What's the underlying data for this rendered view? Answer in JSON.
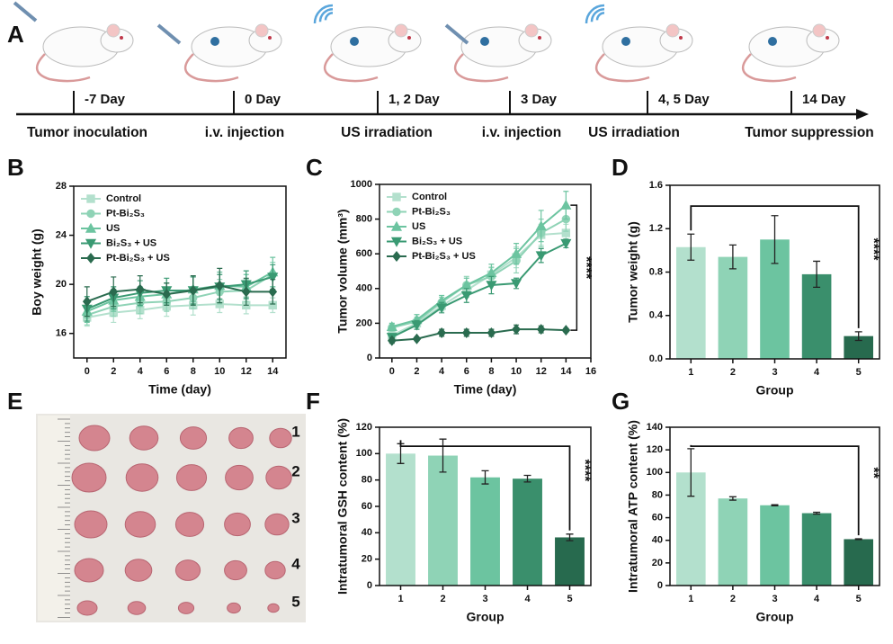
{
  "timeline": {
    "panel": "A",
    "days": [
      "-7 Day",
      "0 Day",
      "1, 2 Day",
      "3 Day",
      "4, 5 Day",
      "14 Day"
    ],
    "events": [
      "Tumor inoculation",
      "i.v. injection",
      "US irradiation",
      "i.v. injection",
      "US irradiation",
      "Tumor suppression"
    ]
  },
  "photo": {
    "panel": "E",
    "row_labels": [
      "1",
      "2",
      "3",
      "4",
      "5"
    ]
  },
  "chart_data": [
    {
      "type": "line",
      "panel": "B",
      "xlabel": "Time (day)",
      "ylabel": "Boy weight (g)",
      "x": [
        0,
        2,
        4,
        6,
        8,
        10,
        12,
        14
      ],
      "xlim": [
        -1,
        15
      ],
      "xticks": [
        0,
        2,
        4,
        6,
        8,
        10,
        12,
        14
      ],
      "ylim": [
        14,
        28
      ],
      "yticks": [
        16,
        20,
        24,
        28
      ],
      "legend": "upper left",
      "grid": false,
      "series": [
        {
          "name": "Control",
          "color": "#b3e0cd",
          "marker": "square",
          "values": [
            17.3,
            17.7,
            17.9,
            18.2,
            18.3,
            18.4,
            18.3,
            18.3
          ],
          "errors": [
            0.7,
            0.8,
            0.7,
            0.8,
            0.8,
            0.7,
            0.7,
            0.6
          ]
        },
        {
          "name": "Pt-Bi₂S₃",
          "color": "#8fd3b6",
          "marker": "circle",
          "values": [
            17.5,
            18.2,
            18.5,
            18.6,
            18.9,
            19.4,
            19.5,
            20.8
          ],
          "errors": [
            0.8,
            0.8,
            0.9,
            0.8,
            0.9,
            1.0,
            0.9,
            1.0
          ]
        },
        {
          "name": "US",
          "color": "#6cc4a0",
          "marker": "triangle",
          "values": [
            17.8,
            18.7,
            19.0,
            19.2,
            19.6,
            19.9,
            19.8,
            21.0
          ],
          "errors": [
            0.9,
            0.9,
            0.8,
            0.9,
            1.0,
            1.1,
            1.0,
            1.2
          ]
        },
        {
          "name": "Bi₂S₃ + US",
          "color": "#3a9a73",
          "marker": "triangle-down",
          "values": [
            18.0,
            18.9,
            19.3,
            19.5,
            19.5,
            19.8,
            20.0,
            20.6
          ],
          "errors": [
            1.0,
            0.9,
            1.0,
            1.0,
            1.1,
            1.0,
            1.1,
            1.0
          ]
        },
        {
          "name": "Pt-Bi₂S₃ + US",
          "color": "#2a6b4f",
          "marker": "diamond",
          "values": [
            18.6,
            19.4,
            19.6,
            19.2,
            19.5,
            19.9,
            19.4,
            19.4
          ],
          "errors": [
            1.2,
            1.2,
            1.1,
            0.9,
            1.2,
            1.4,
            1.1,
            1.0
          ]
        }
      ]
    },
    {
      "type": "line",
      "panel": "C",
      "xlabel": "Time (day)",
      "ylabel": "Tumor volume (mm³)",
      "x": [
        0,
        2,
        4,
        6,
        8,
        10,
        12,
        14
      ],
      "xlim": [
        -1,
        16
      ],
      "xticks": [
        0,
        2,
        4,
        6,
        8,
        10,
        12,
        14,
        16
      ],
      "ylim": [
        0,
        1000
      ],
      "yticks": [
        0,
        200,
        400,
        600,
        800,
        1000
      ],
      "legend": "upper left",
      "grid": false,
      "annotation": "****",
      "series": [
        {
          "name": "Control",
          "color": "#b3e0cd",
          "marker": "square",
          "values": [
            130,
            200,
            300,
            390,
            480,
            580,
            710,
            720
          ],
          "errors": [
            20,
            25,
            30,
            40,
            45,
            60,
            60,
            50
          ]
        },
        {
          "name": "Pt-Bi₂S₃",
          "color": "#8fd3b6",
          "marker": "circle",
          "values": [
            175,
            210,
            320,
            420,
            470,
            560,
            720,
            800
          ],
          "errors": [
            20,
            25,
            30,
            50,
            50,
            70,
            80,
            70
          ]
        },
        {
          "name": "US",
          "color": "#6cc4a0",
          "marker": "triangle",
          "values": [
            180,
            220,
            330,
            420,
            490,
            600,
            760,
            880
          ],
          "errors": [
            20,
            30,
            30,
            40,
            50,
            60,
            90,
            80
          ]
        },
        {
          "name": "Bi₂S₃ + US",
          "color": "#3a9a73",
          "marker": "triangle-down",
          "values": [
            120,
            190,
            290,
            360,
            420,
            430,
            590,
            660
          ],
          "errors": [
            20,
            25,
            30,
            40,
            50,
            30,
            40,
            25
          ]
        },
        {
          "name": "Pt-Bi₂S₃ + US",
          "color": "#2a6b4f",
          "marker": "diamond",
          "values": [
            100,
            110,
            145,
            145,
            145,
            165,
            165,
            160
          ],
          "errors": [
            15,
            10,
            20,
            20,
            20,
            25,
            20,
            10
          ]
        }
      ]
    },
    {
      "type": "bar",
      "panel": "D",
      "xlabel": "Group",
      "ylabel": "Tumor weight (g)",
      "annotation": "****",
      "categories": [
        "1",
        "2",
        "3",
        "4",
        "5"
      ],
      "values": [
        1.03,
        0.94,
        1.1,
        0.78,
        0.21
      ],
      "errors": [
        0.12,
        0.11,
        0.22,
        0.12,
        0.04
      ],
      "colors": [
        "#b3e0cd",
        "#8fd3b6",
        "#6cc4a0",
        "#3a8f6c",
        "#276a4e"
      ],
      "ylim": [
        0,
        1.6
      ],
      "yticks": [
        {
          "value": 0,
          "label": "0.0"
        },
        0.4,
        0.8,
        1.2,
        1.6
      ],
      "grid": false
    },
    {
      "type": "bar",
      "panel": "F",
      "xlabel": "Group",
      "ylabel": "Intratumoral GSH content (%)",
      "annotation": "****",
      "categories": [
        "1",
        "2",
        "3",
        "4",
        "5"
      ],
      "values": [
        100,
        98.5,
        82,
        81,
        36.5
      ],
      "errors": [
        7.5,
        12.5,
        5,
        2.5,
        2.5
      ],
      "colors": [
        "#b3e0cd",
        "#8fd3b6",
        "#6cc4a0",
        "#3a8f6c",
        "#276a4e"
      ],
      "ylim": [
        0,
        120
      ],
      "yticks": [
        0,
        20,
        40,
        60,
        80,
        100,
        120
      ],
      "grid": false
    },
    {
      "type": "bar",
      "panel": "G",
      "xlabel": "Group",
      "ylabel": "Intratumoral ATP content (%)",
      "annotation": "**",
      "categories": [
        "1",
        "2",
        "3",
        "4",
        "5"
      ],
      "values": [
        100,
        77,
        71,
        64,
        41
      ],
      "errors": [
        21,
        1.5,
        0.5,
        0.8,
        0.3
      ],
      "colors": [
        "#b3e0cd",
        "#8fd3b6",
        "#6cc4a0",
        "#3a8f6c",
        "#276a4e"
      ],
      "ylim": [
        0,
        140
      ],
      "yticks": [
        0,
        20,
        40,
        60,
        80,
        100,
        120,
        140
      ],
      "grid": false
    }
  ]
}
